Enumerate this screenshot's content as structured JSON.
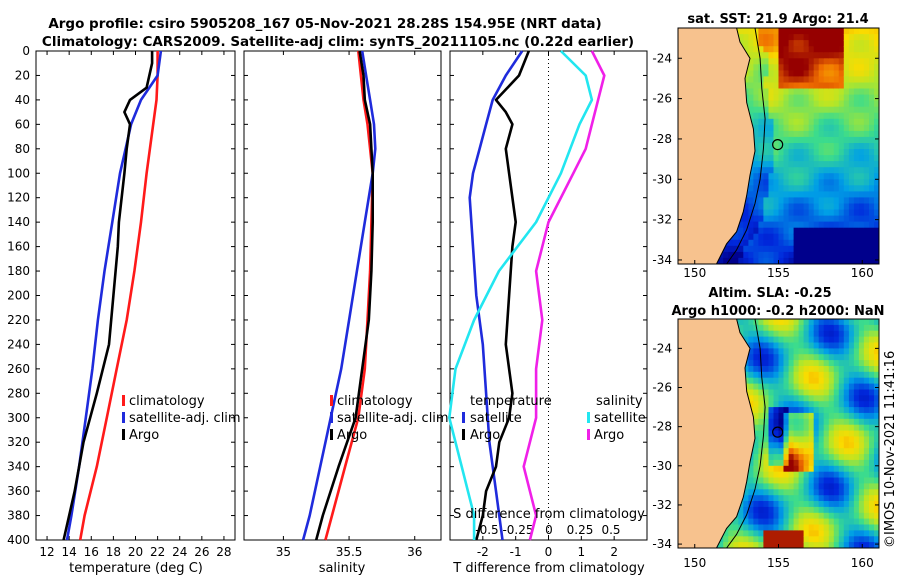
{
  "header": {
    "title_line1": "Argo profile: csiro 5905208_167 05-Nov-2021 28.28S 154.95E (NRT data)",
    "title_line2": "Climatology: CARS2009. Satellite-adj clim: synTS_20211105.nc (0.22d earlier)"
  },
  "colors": {
    "climatology": "#ff1a1a",
    "satellite": "#1f2bdc",
    "argo": "#000000",
    "salinity_satellite": "#22e6f0",
    "salinity_argo": "#f020e8",
    "land": "#f7c28e"
  },
  "footer": {
    "credit": "©IMOS 10-Nov-2021 11:41:16"
  },
  "chart_data": [
    {
      "type": "line",
      "title": "",
      "xlabel": "temperature (deg C)",
      "ylabel": "",
      "xlim": [
        11,
        29
      ],
      "ylim": [
        400,
        0
      ],
      "xticks": [
        12,
        14,
        16,
        18,
        20,
        22,
        24,
        26,
        28
      ],
      "yticks": [
        0,
        20,
        40,
        60,
        80,
        100,
        120,
        140,
        160,
        180,
        200,
        220,
        240,
        260,
        280,
        300,
        320,
        340,
        360,
        380,
        400
      ],
      "legend": [
        "climatology",
        "satellite-adj. clim",
        "Argo"
      ],
      "series": [
        {
          "name": "climatology",
          "depth": [
            0,
            20,
            40,
            60,
            80,
            100,
            140,
            180,
            220,
            260,
            300,
            340,
            380,
            400
          ],
          "values": [
            22.0,
            22.0,
            21.9,
            21.6,
            21.3,
            21.0,
            20.5,
            19.9,
            19.2,
            18.3,
            17.4,
            16.5,
            15.4,
            15.0
          ]
        },
        {
          "name": "satellite-adj. clim",
          "depth": [
            0,
            20,
            40,
            60,
            80,
            100,
            140,
            180,
            220,
            260,
            300,
            340,
            380,
            400
          ],
          "values": [
            22.3,
            22.0,
            20.5,
            19.6,
            19.1,
            18.6,
            17.9,
            17.2,
            16.6,
            16.1,
            15.5,
            14.9,
            14.2,
            13.8
          ]
        },
        {
          "name": "Argo",
          "depth": [
            0,
            10,
            30,
            40,
            50,
            60,
            80,
            100,
            140,
            160,
            200,
            240,
            280,
            320,
            360,
            400
          ],
          "values": [
            21.5,
            21.5,
            21.0,
            19.5,
            19.0,
            19.5,
            19.2,
            19.0,
            18.5,
            18.4,
            18.0,
            17.6,
            16.5,
            15.3,
            14.5,
            13.5
          ]
        }
      ]
    },
    {
      "type": "line",
      "xlabel": "salinity",
      "xlim": [
        34.7,
        36.2
      ],
      "ylim": [
        400,
        0
      ],
      "xticks": [
        35,
        35.5,
        36
      ],
      "legend": [
        "climatology",
        "satellite-adj. clim",
        "Argo"
      ],
      "series": [
        {
          "name": "climatology",
          "depth": [
            0,
            20,
            40,
            60,
            80,
            100,
            140,
            180,
            220,
            260,
            300,
            340,
            380,
            400
          ],
          "values": [
            35.57,
            35.59,
            35.61,
            35.64,
            35.66,
            35.68,
            35.67,
            35.66,
            35.64,
            35.62,
            35.57,
            35.47,
            35.37,
            35.32
          ]
        },
        {
          "name": "satellite-adj. clim",
          "depth": [
            0,
            20,
            40,
            60,
            80,
            100,
            140,
            180,
            220,
            260,
            300,
            340,
            380,
            400
          ],
          "values": [
            35.6,
            35.63,
            35.66,
            35.69,
            35.7,
            35.68,
            35.62,
            35.56,
            35.5,
            35.44,
            35.36,
            35.28,
            35.2,
            35.15
          ]
        },
        {
          "name": "Argo",
          "depth": [
            0,
            20,
            40,
            60,
            80,
            100,
            140,
            180,
            220,
            260,
            300,
            340,
            380,
            400
          ],
          "values": [
            35.58,
            35.61,
            35.62,
            35.66,
            35.67,
            35.68,
            35.68,
            35.67,
            35.65,
            35.6,
            35.55,
            35.42,
            35.3,
            35.25
          ]
        }
      ]
    },
    {
      "type": "line",
      "xlabel": "T difference from climatology",
      "xlabel_top": "S difference from climatology",
      "xlim": [
        -3,
        3
      ],
      "ylim": [
        400,
        0
      ],
      "xticks": [
        -2,
        -1,
        0,
        1,
        2
      ],
      "xticks_top": [
        "-0.5",
        "-0.25",
        "0",
        "0.25",
        "0.5"
      ],
      "legend_temperature": {
        "title": "temperature",
        "items": [
          "satellite",
          "Argo"
        ]
      },
      "legend_salinity": {
        "title": "salinity",
        "items": [
          "satellite",
          "Argo"
        ]
      },
      "series": [
        {
          "name": "T satellite",
          "depth": [
            0,
            20,
            40,
            60,
            80,
            100,
            120,
            160,
            200,
            240,
            280,
            320,
            360,
            400
          ],
          "values": [
            -0.8,
            -1.3,
            -1.7,
            -1.9,
            -2.1,
            -2.3,
            -2.4,
            -2.3,
            -2.2,
            -2.0,
            -1.9,
            -1.8,
            -1.6,
            -1.4
          ]
        },
        {
          "name": "T Argo",
          "depth": [
            0,
            20,
            40,
            50,
            60,
            80,
            100,
            140,
            160,
            200,
            240,
            280,
            300,
            320,
            340,
            360,
            380,
            400
          ],
          "values": [
            -0.6,
            -0.9,
            -1.6,
            -1.3,
            -1.1,
            -1.3,
            -1.2,
            -1.0,
            -1.1,
            -1.2,
            -1.3,
            -1.1,
            -1.2,
            -1.5,
            -1.6,
            -1.9,
            -2.0,
            -2.2
          ]
        },
        {
          "name": "S satellite",
          "depth": [
            0,
            20,
            40,
            60,
            100,
            140,
            180,
            220,
            260,
            300,
            340,
            380,
            400
          ],
          "values": [
            0.1,
            0.3,
            0.35,
            0.25,
            0.1,
            -0.1,
            -0.4,
            -0.6,
            -0.75,
            -0.8,
            -0.7,
            -0.6,
            -0.6
          ]
        },
        {
          "name": "S Argo",
          "depth": [
            0,
            20,
            40,
            60,
            80,
            100,
            140,
            180,
            220,
            260,
            300,
            340,
            380,
            400
          ],
          "values": [
            0.35,
            0.45,
            0.4,
            0.35,
            0.3,
            0.2,
            0.0,
            -0.1,
            -0.05,
            -0.1,
            -0.1,
            -0.2,
            -0.1,
            -0.15
          ]
        }
      ]
    },
    {
      "type": "heatmap",
      "title": "sat. SST: 21.9 Argo: 21.4",
      "xlim": [
        149,
        161
      ],
      "ylim": [
        -34.2,
        -22.5
      ],
      "xticks": [
        150,
        155,
        160
      ],
      "yticks": [
        -24,
        -26,
        -28,
        -30,
        -32,
        -34
      ],
      "marker": {
        "lon": 154.95,
        "lat": -28.28
      }
    },
    {
      "type": "heatmap",
      "title_line1": "Altim. SLA: -0.25",
      "title_line2": "Argo h1000: -0.2 h2000: NaN",
      "xlim": [
        149,
        161
      ],
      "ylim": [
        -34.2,
        -22.5
      ],
      "xticks": [
        150,
        155,
        160
      ],
      "yticks": [
        -24,
        -26,
        -28,
        -30,
        -32,
        -34
      ],
      "marker": {
        "lon": 154.95,
        "lat": -28.28
      }
    }
  ]
}
